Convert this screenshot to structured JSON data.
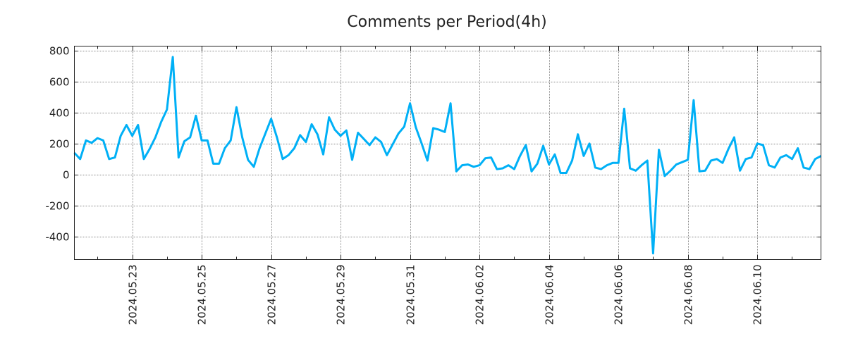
{
  "chart_data": {
    "type": "line",
    "title": "Comments per Period(4h)",
    "xlabel": "",
    "ylabel": "",
    "x_start": "2024-05-21 08:00",
    "x_step_hours": 4,
    "ylim": [
      -550,
      830
    ],
    "yticks": [
      800,
      600,
      400,
      200,
      0,
      -200,
      -400
    ],
    "xticks": [
      "2024.05.23",
      "2024.05.25",
      "2024.05.27",
      "2024.05.29",
      "2024.05.31",
      "2024.06.02",
      "2024.06.04",
      "2024.06.06",
      "2024.06.08",
      "2024.06.10"
    ],
    "grid": true,
    "line_color": "#00b0f6",
    "series": [
      {
        "name": "comments",
        "values": [
          140,
          100,
          220,
          205,
          235,
          220,
          100,
          110,
          250,
          320,
          250,
          320,
          100,
          165,
          240,
          340,
          420,
          760,
          110,
          215,
          240,
          380,
          220,
          220,
          70,
          70,
          170,
          220,
          435,
          240,
          95,
          50,
          170,
          265,
          360,
          240,
          100,
          125,
          170,
          255,
          210,
          325,
          260,
          130,
          370,
          290,
          250,
          285,
          95,
          270,
          230,
          190,
          240,
          210,
          125,
          195,
          265,
          310,
          460,
          305,
          200,
          90,
          300,
          290,
          275,
          460,
          20,
          60,
          65,
          50,
          60,
          105,
          110,
          35,
          40,
          60,
          35,
          120,
          190,
          20,
          70,
          185,
          65,
          130,
          10,
          10,
          90,
          260,
          120,
          200,
          45,
          35,
          60,
          75,
          75,
          425,
          40,
          25,
          60,
          90,
          -510,
          160,
          -10,
          25,
          65,
          80,
          95,
          480,
          20,
          25,
          90,
          100,
          75,
          165,
          240,
          25,
          100,
          110,
          200,
          190,
          60,
          45,
          110,
          125,
          100,
          170,
          45,
          35,
          100,
          120
        ]
      }
    ]
  }
}
